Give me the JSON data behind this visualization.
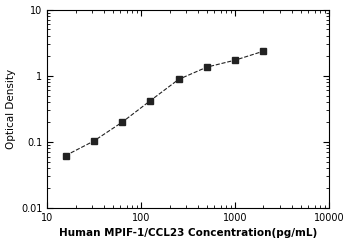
{
  "x_data": [
    15.625,
    31.25,
    62.5,
    125,
    250,
    500,
    1000,
    2000
  ],
  "y_data": [
    0.062,
    0.103,
    0.198,
    0.42,
    0.88,
    1.35,
    1.72,
    2.35
  ],
  "xlabel": "Human MPIF-1/CCL23 Concentration(pg/mL)",
  "ylabel": "Optical Density",
  "xlim": [
    10,
    10000
  ],
  "ylim": [
    0.01,
    10
  ],
  "marker": "s",
  "marker_color": "#222222",
  "line_color": "#999999",
  "line_style": "--",
  "marker_size": 4.5,
  "line_width": 0.8,
  "xlabel_fontsize": 7.5,
  "ylabel_fontsize": 7.5,
  "tick_fontsize": 7,
  "xlabel_fontweight": "bold",
  "y_tick_labels": [
    "0.01",
    "0.1",
    "1",
    "10"
  ],
  "y_tick_values": [
    0.01,
    0.1,
    1,
    10
  ],
  "x_tick_labels": [
    "10",
    "100",
    "1000",
    "10000"
  ],
  "x_tick_values": [
    10,
    100,
    1000,
    10000
  ]
}
